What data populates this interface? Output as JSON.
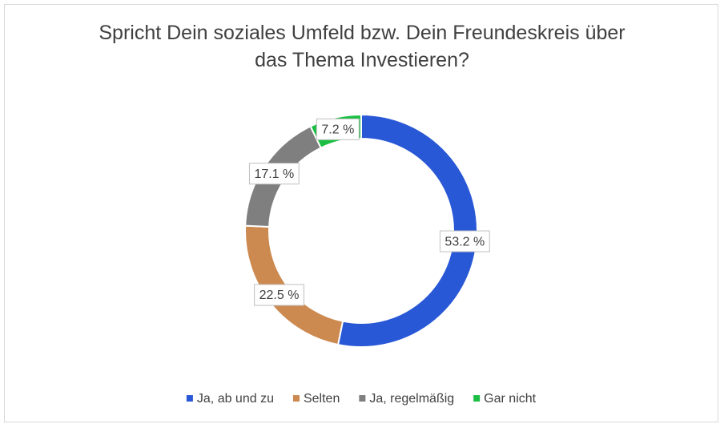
{
  "chart_data": {
    "type": "donut",
    "title": "Spricht Dein soziales Umfeld bzw. Dein Freundeskreis über das Thema Investieren?",
    "categories": [
      "Ja, ab und zu",
      "Selten",
      "Ja, regelmäßig",
      "Gar nicht"
    ],
    "values": [
      53.2,
      22.5,
      17.1,
      7.2
    ],
    "value_labels": [
      "53.2 %",
      "22.5 %",
      "17.1 %",
      "7.2 %"
    ],
    "colors": [
      "#2858d6",
      "#cc8a50",
      "#7f7f7f",
      "#1cbf44"
    ],
    "legend": "bottom"
  }
}
